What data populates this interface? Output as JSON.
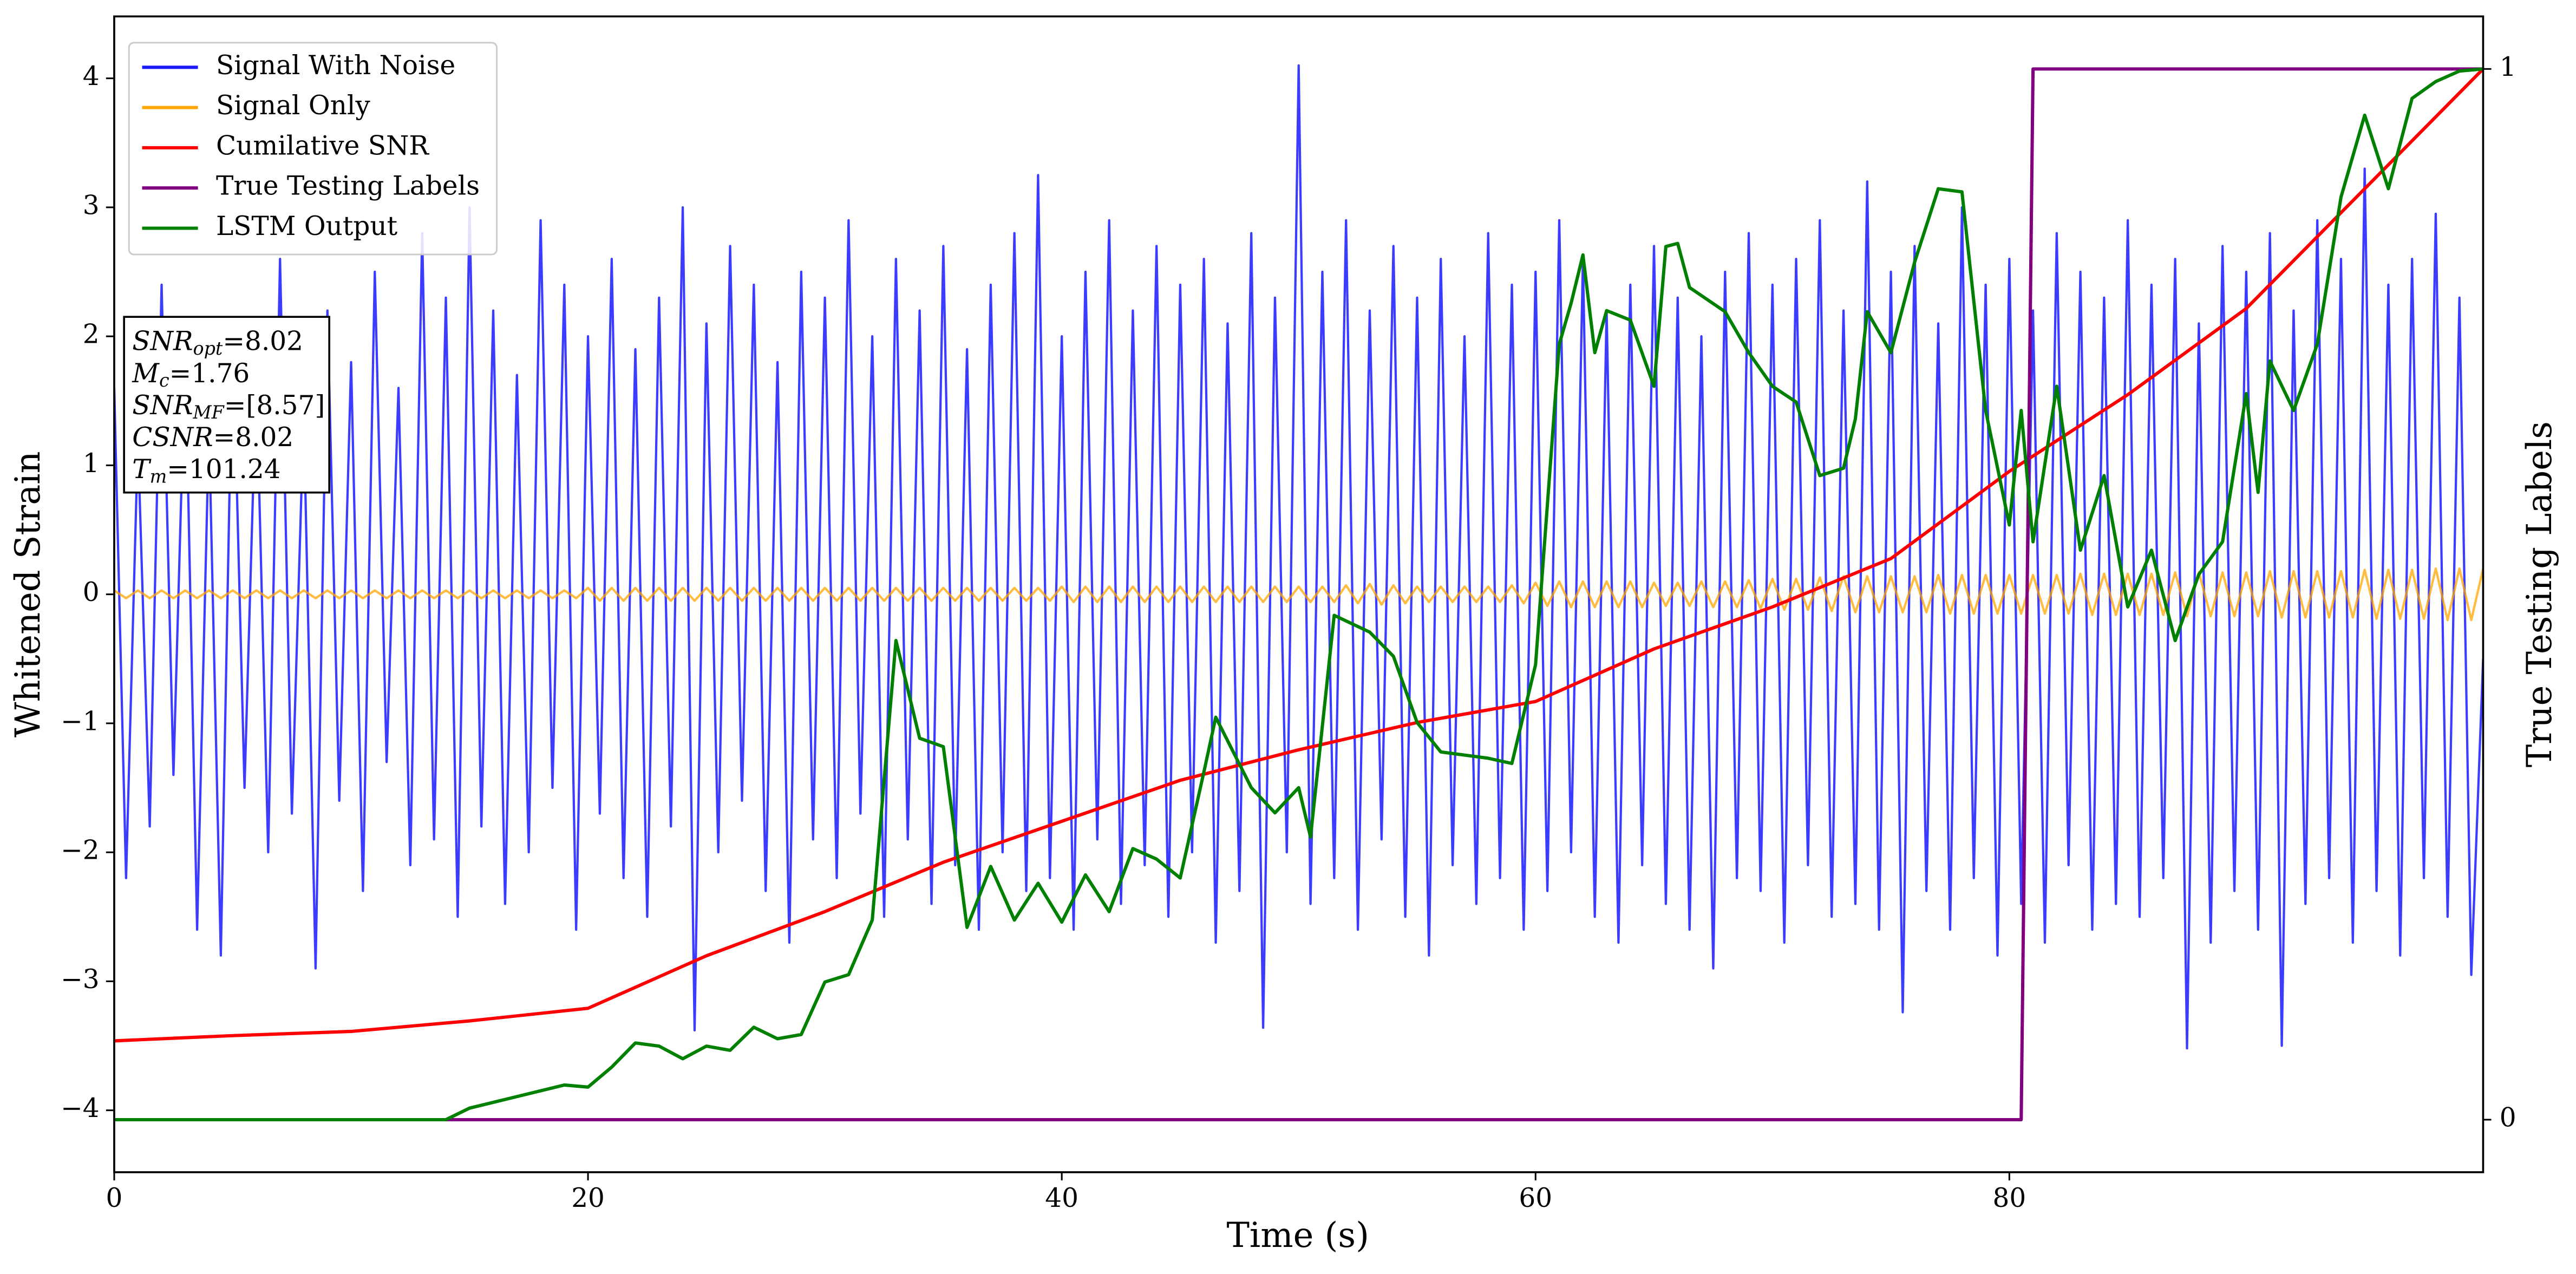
{
  "chart_data": {
    "type": "line",
    "xlabel": "Time (s)",
    "ylabel": "Whitened Strain",
    "y2label": "True Testing Labels",
    "xlim": [
      0,
      100
    ],
    "ylim": [
      -4.48,
      4.48
    ],
    "y2lim": [
      -0.05,
      1.05
    ],
    "xticks": [
      0,
      20,
      40,
      60,
      80
    ],
    "yticks": [
      {
        "value": -4,
        "label": "−4"
      },
      {
        "value": -3,
        "label": "−3"
      },
      {
        "value": -2,
        "label": "−2"
      },
      {
        "value": -1,
        "label": "−1"
      },
      0,
      1,
      2,
      3,
      4
    ],
    "y2ticks": [
      0,
      1
    ],
    "legend": "upper left",
    "annotation": [
      {
        "name": "SNR",
        "sub": "opt",
        "text": "=8.02"
      },
      {
        "name": "M",
        "sub": "c",
        "text": "=1.76"
      },
      {
        "name": "SNR",
        "sub": "MF",
        "text": "=[8.57]"
      },
      {
        "name": "CSNR",
        "text": "=8.02"
      },
      {
        "name": "T",
        "sub": "m",
        "text": "=101.24"
      }
    ],
    "x": [
      0,
      0.5,
      1,
      1.5,
      2,
      2.5,
      3,
      3.5,
      4,
      4.5,
      5,
      5.5,
      6,
      6.5,
      7,
      7.5,
      8,
      8.5,
      9,
      9.5,
      10,
      10.5,
      11,
      11.5,
      12,
      12.5,
      13,
      13.5,
      14,
      14.5,
      15,
      15.5,
      16,
      16.5,
      17,
      17.5,
      18,
      18.5,
      19,
      19.5,
      20,
      20.5,
      21,
      21.5,
      22,
      22.5,
      23,
      23.5,
      24,
      24.5,
      25,
      25.5,
      26,
      26.5,
      27,
      27.5,
      28,
      28.5,
      29,
      29.5,
      30,
      30.5,
      31,
      31.5,
      32,
      32.5,
      33,
      33.5,
      34,
      34.5,
      35,
      35.5,
      36,
      36.5,
      37,
      37.5,
      38,
      38.5,
      39,
      39.5,
      40,
      40.5,
      41,
      41.5,
      42,
      42.5,
      43,
      43.5,
      44,
      44.5,
      45,
      45.5,
      46,
      46.5,
      47,
      47.5,
      48,
      48.5,
      49,
      49.5,
      50,
      50.5,
      51,
      51.5,
      52,
      52.5,
      53,
      53.5,
      54,
      54.5,
      55,
      55.5,
      56,
      56.5,
      57,
      57.5,
      58,
      58.5,
      59,
      59.5,
      60,
      60.5,
      61,
      61.5,
      62,
      62.5,
      63,
      63.5,
      64,
      64.5,
      65,
      65.5,
      66,
      66.5,
      67,
      67.5,
      68,
      68.5,
      69,
      69.5,
      70,
      70.5,
      71,
      71.5,
      72,
      72.5,
      73,
      73.5,
      74,
      74.5,
      75,
      75.5,
      76,
      76.5,
      77,
      77.5,
      78,
      78.5,
      79,
      79.5,
      80,
      80.5,
      81,
      81.5,
      82,
      82.5,
      83,
      83.5,
      84,
      84.5,
      85,
      85.5,
      86,
      86.5,
      87,
      87.5,
      88,
      88.5,
      89,
      89.5,
      90,
      90.5,
      91,
      91.5,
      92,
      92.5,
      93,
      93.5,
      94,
      94.5,
      95,
      95.5,
      96,
      96.5,
      97,
      97.5,
      98,
      98.5,
      99,
      99.5,
      100
    ],
    "series": [
      {
        "name": "Signal With Noise",
        "color": "#1a1aff",
        "axis": "y",
        "values": [
          1.6,
          -2.2,
          1.2,
          -1.8,
          2.4,
          -1.4,
          1.9,
          -2.6,
          1.3,
          -2.8,
          2.1,
          -1.5,
          1.7,
          -2.0,
          2.6,
          -1.7,
          1.4,
          -2.9,
          2.2,
          -1.6,
          1.8,
          -2.3,
          2.5,
          -1.3,
          1.6,
          -2.1,
          2.8,
          -1.9,
          2.3,
          -2.5,
          3.0,
          -1.8,
          2.2,
          -2.4,
          1.7,
          -2.0,
          2.9,
          -1.5,
          2.4,
          -2.6,
          2.0,
          -1.7,
          2.6,
          -2.2,
          1.9,
          -2.5,
          2.3,
          -1.8,
          3.0,
          -3.38,
          2.1,
          -2.0,
          2.7,
          -1.6,
          2.4,
          -2.3,
          1.8,
          -2.7,
          2.5,
          -1.9,
          2.3,
          -2.2,
          2.9,
          -1.7,
          2.0,
          -2.5,
          2.6,
          -1.9,
          2.2,
          -2.4,
          2.7,
          -2.1,
          1.9,
          -2.6,
          2.4,
          -2.0,
          2.8,
          -2.3,
          3.25,
          -2.2,
          2.0,
          -2.6,
          2.5,
          -1.9,
          2.9,
          -2.4,
          2.2,
          -2.1,
          2.7,
          -2.5,
          2.4,
          -2.0,
          2.6,
          -2.7,
          2.1,
          -2.3,
          2.8,
          -3.36,
          2.3,
          -2.0,
          4.1,
          -2.4,
          2.5,
          -2.2,
          2.9,
          -2.6,
          2.2,
          -1.9,
          2.7,
          -2.5,
          2.3,
          -2.8,
          2.6,
          -2.1,
          2.0,
          -2.4,
          2.8,
          -2.2,
          2.4,
          -2.6,
          2.5,
          -2.3,
          2.9,
          -2.0,
          2.6,
          -2.5,
          2.2,
          -2.7,
          2.4,
          -2.1,
          2.7,
          -2.4,
          2.3,
          -2.6,
          2.0,
          -2.9,
          2.5,
          -2.2,
          2.8,
          -2.3,
          2.4,
          -2.7,
          2.6,
          -2.1,
          2.9,
          -2.5,
          2.2,
          -2.4,
          3.2,
          -2.6,
          2.5,
          -3.24,
          2.7,
          -2.3,
          2.1,
          -2.6,
          3.0,
          -2.2,
          2.4,
          -2.8,
          2.6,
          -2.4,
          2.2,
          -2.7,
          2.8,
          -2.1,
          2.5,
          -2.6,
          2.3,
          -2.4,
          2.9,
          -2.5,
          2.4,
          -2.2,
          2.6,
          -3.52,
          2.1,
          -2.7,
          2.7,
          -2.3,
          2.5,
          -2.6,
          2.8,
          -3.5,
          2.2,
          -2.4,
          2.9,
          -2.2,
          2.6,
          -2.7,
          3.3,
          -2.3,
          2.4,
          -2.8,
          2.6,
          -2.2,
          2.95,
          -2.5,
          2.3,
          -2.95,
          -0.5
        ]
      },
      {
        "name": "Signal Only",
        "color": "#ffa500",
        "axis": "y",
        "values": [
          0.03,
          -0.03,
          0.03,
          -0.03,
          0.03,
          -0.03,
          0.03,
          -0.03,
          0.03,
          -0.03,
          0.03,
          -0.03,
          0.03,
          -0.03,
          0.03,
          -0.03,
          0.03,
          -0.03,
          0.03,
          -0.03,
          0.03,
          -0.03,
          0.03,
          -0.03,
          0.03,
          -0.03,
          0.03,
          -0.03,
          0.03,
          -0.03,
          0.03,
          -0.03,
          0.03,
          -0.03,
          0.03,
          -0.03,
          0.03,
          -0.03,
          0.03,
          -0.03,
          0.05,
          -0.05,
          0.05,
          -0.05,
          0.05,
          -0.05,
          0.05,
          -0.05,
          0.05,
          -0.05,
          0.05,
          -0.05,
          0.05,
          -0.05,
          0.05,
          -0.05,
          0.05,
          -0.05,
          0.05,
          -0.05,
          0.05,
          -0.05,
          0.05,
          -0.05,
          0.05,
          -0.05,
          0.05,
          -0.05,
          0.05,
          -0.05,
          0.05,
          -0.05,
          0.05,
          -0.05,
          0.05,
          -0.05,
          0.05,
          -0.05,
          0.05,
          -0.05,
          0.06,
          -0.06,
          0.06,
          -0.06,
          0.06,
          -0.06,
          0.06,
          -0.06,
          0.06,
          -0.06,
          0.06,
          -0.06,
          0.06,
          -0.06,
          0.06,
          -0.06,
          0.06,
          -0.06,
          0.06,
          -0.06,
          0.06,
          -0.06,
          0.06,
          -0.06,
          0.07,
          -0.07,
          0.08,
          -0.08,
          0.07,
          -0.07,
          0.06,
          -0.06,
          0.06,
          -0.06,
          0.06,
          -0.06,
          0.06,
          -0.06,
          0.07,
          -0.07,
          0.09,
          -0.09,
          0.1,
          -0.1,
          0.1,
          -0.1,
          0.1,
          -0.1,
          0.1,
          -0.1,
          0.09,
          -0.09,
          0.09,
          -0.09,
          0.1,
          -0.1,
          0.1,
          -0.1,
          0.11,
          -0.11,
          0.12,
          -0.12,
          0.12,
          -0.12,
          0.13,
          -0.13,
          0.14,
          -0.14,
          0.14,
          -0.14,
          0.14,
          -0.14,
          0.14,
          -0.14,
          0.15,
          -0.15,
          0.15,
          -0.15,
          0.15,
          -0.15,
          0.15,
          -0.15,
          0.15,
          -0.15,
          0.15,
          -0.15,
          0.16,
          -0.16,
          0.16,
          -0.16,
          0.16,
          -0.16,
          0.16,
          -0.16,
          0.17,
          -0.17,
          0.17,
          -0.17,
          0.17,
          -0.17,
          0.17,
          -0.17,
          0.18,
          -0.18,
          0.18,
          -0.18,
          0.18,
          -0.18,
          0.18,
          -0.18,
          0.19,
          -0.19,
          0.19,
          -0.19,
          0.19,
          -0.19,
          0.2,
          -0.2,
          0.2,
          -0.2,
          0.2
        ]
      },
      {
        "name": "Cumilative SNR",
        "color": "#ff0000",
        "axis": "y2",
        "x": [
          0,
          5,
          10,
          15,
          20,
          25,
          30,
          35,
          40,
          45,
          50,
          55,
          60,
          65,
          70,
          75,
          80,
          85,
          90,
          95,
          100
        ],
        "values": [
          0.075,
          0.08,
          0.084,
          0.094,
          0.106,
          0.156,
          0.198,
          0.245,
          0.284,
          0.323,
          0.352,
          0.378,
          0.398,
          0.448,
          0.488,
          0.534,
          0.617,
          0.69,
          0.772,
          0.886,
          1.0
        ]
      },
      {
        "name": "True Testing Labels",
        "color": "#800080",
        "axis": "y2",
        "x": [
          0,
          80.5,
          81,
          100
        ],
        "values": [
          0,
          0,
          1,
          1
        ]
      },
      {
        "name": "LSTM Output",
        "color": "#008000",
        "axis": "y2",
        "x": [
          0,
          14,
          15,
          17,
          19,
          20,
          21,
          22,
          23,
          24,
          25,
          26,
          27,
          28,
          29,
          30,
          31,
          32,
          33,
          34,
          35,
          36,
          37,
          38,
          39,
          40,
          41,
          42,
          43,
          44,
          45,
          46,
          46.5,
          48,
          49,
          50,
          50.5,
          51.5,
          53,
          54,
          55,
          56,
          58,
          59,
          60,
          61,
          61.5,
          62,
          62.5,
          63,
          64,
          65,
          65.5,
          66,
          66.5,
          68,
          69,
          70,
          71,
          72,
          73,
          73.5,
          74,
          75,
          76,
          77,
          78,
          79,
          80,
          80.5,
          81,
          82,
          83,
          84,
          85,
          86,
          87,
          88,
          89,
          90,
          90.5,
          91,
          92,
          93,
          94,
          95,
          96,
          97,
          98,
          99,
          100
        ],
        "values": [
          0,
          0,
          0.011,
          0.022,
          0.033,
          0.031,
          0.05,
          0.073,
          0.07,
          0.058,
          0.07,
          0.066,
          0.088,
          0.077,
          0.081,
          0.131,
          0.138,
          0.19,
          0.456,
          0.363,
          0.355,
          0.183,
          0.241,
          0.19,
          0.225,
          0.188,
          0.233,
          0.198,
          0.258,
          0.248,
          0.23,
          0.331,
          0.383,
          0.316,
          0.292,
          0.316,
          0.269,
          0.48,
          0.464,
          0.441,
          0.378,
          0.35,
          0.344,
          0.339,
          0.433,
          0.738,
          0.777,
          0.823,
          0.73,
          0.77,
          0.761,
          0.698,
          0.831,
          0.834,
          0.792,
          0.769,
          0.73,
          0.698,
          0.683,
          0.613,
          0.62,
          0.667,
          0.769,
          0.73,
          0.816,
          0.886,
          0.883,
          0.675,
          0.566,
          0.675,
          0.55,
          0.698,
          0.542,
          0.613,
          0.488,
          0.542,
          0.456,
          0.519,
          0.55,
          0.691,
          0.597,
          0.722,
          0.675,
          0.738,
          0.878,
          0.956,
          0.886,
          0.972,
          0.988,
          0.998,
          1.0
        ]
      }
    ]
  }
}
